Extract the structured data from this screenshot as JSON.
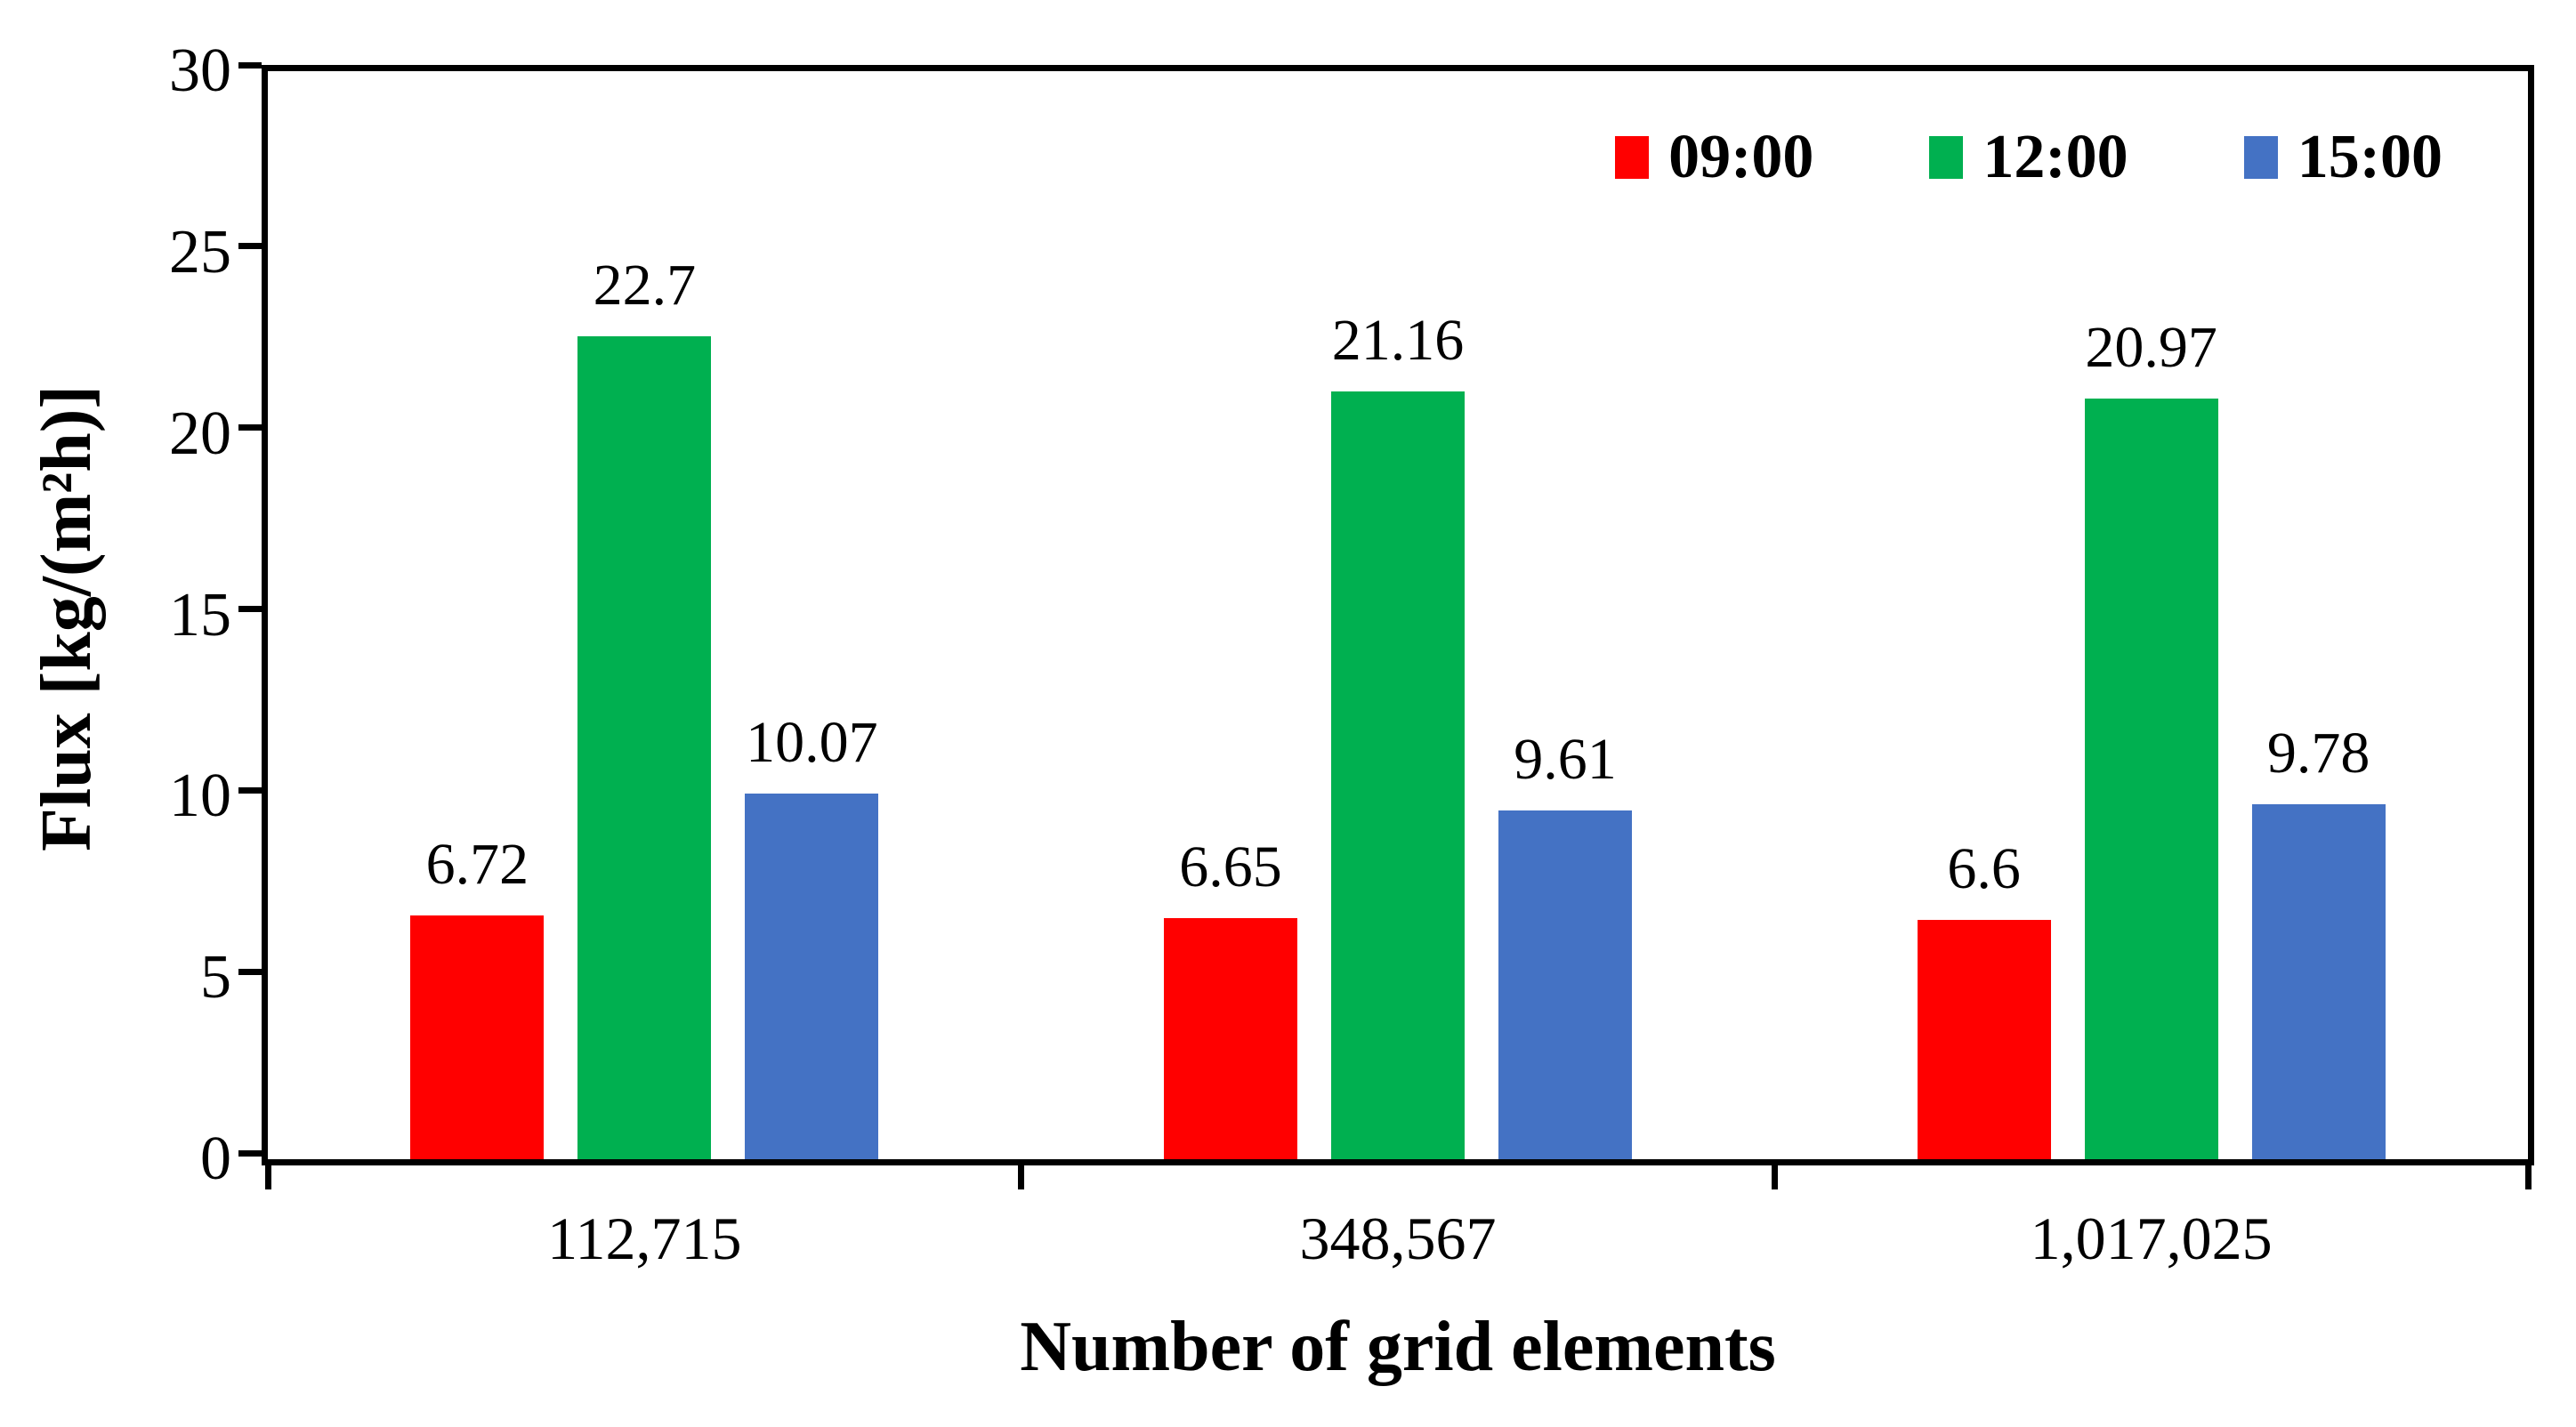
{
  "chart_data": {
    "type": "bar",
    "title": "",
    "xlabel": "Number of grid elements",
    "ylabel": "Flux [kg/(m²h)]",
    "ylim": [
      0,
      30
    ],
    "yticks": [
      0,
      5,
      10,
      15,
      20,
      25,
      30
    ],
    "ytick_labels": [
      "0",
      "5",
      "10",
      "15",
      "20",
      "25",
      "30"
    ],
    "grid": false,
    "legend_position": "top-right-inside",
    "categories": [
      "112,715",
      "348,567",
      "1,017,025"
    ],
    "series": [
      {
        "name": "09:00",
        "color": "#ff0000",
        "values": [
          6.72,
          6.65,
          6.6
        ],
        "labels": [
          "6.72",
          "6.65",
          "6.6"
        ]
      },
      {
        "name": "12:00",
        "color": "#00b050",
        "values": [
          22.7,
          21.16,
          20.97
        ],
        "labels": [
          "22.7",
          "21.16",
          "20.97"
        ]
      },
      {
        "name": "15:00",
        "color": "#4472c4",
        "values": [
          10.07,
          9.61,
          9.78
        ],
        "labels": [
          "10.07",
          "9.61",
          "9.78"
        ]
      }
    ],
    "colors": {
      "axis": "#000000",
      "background": "#ffffff",
      "text": "#000000"
    }
  }
}
